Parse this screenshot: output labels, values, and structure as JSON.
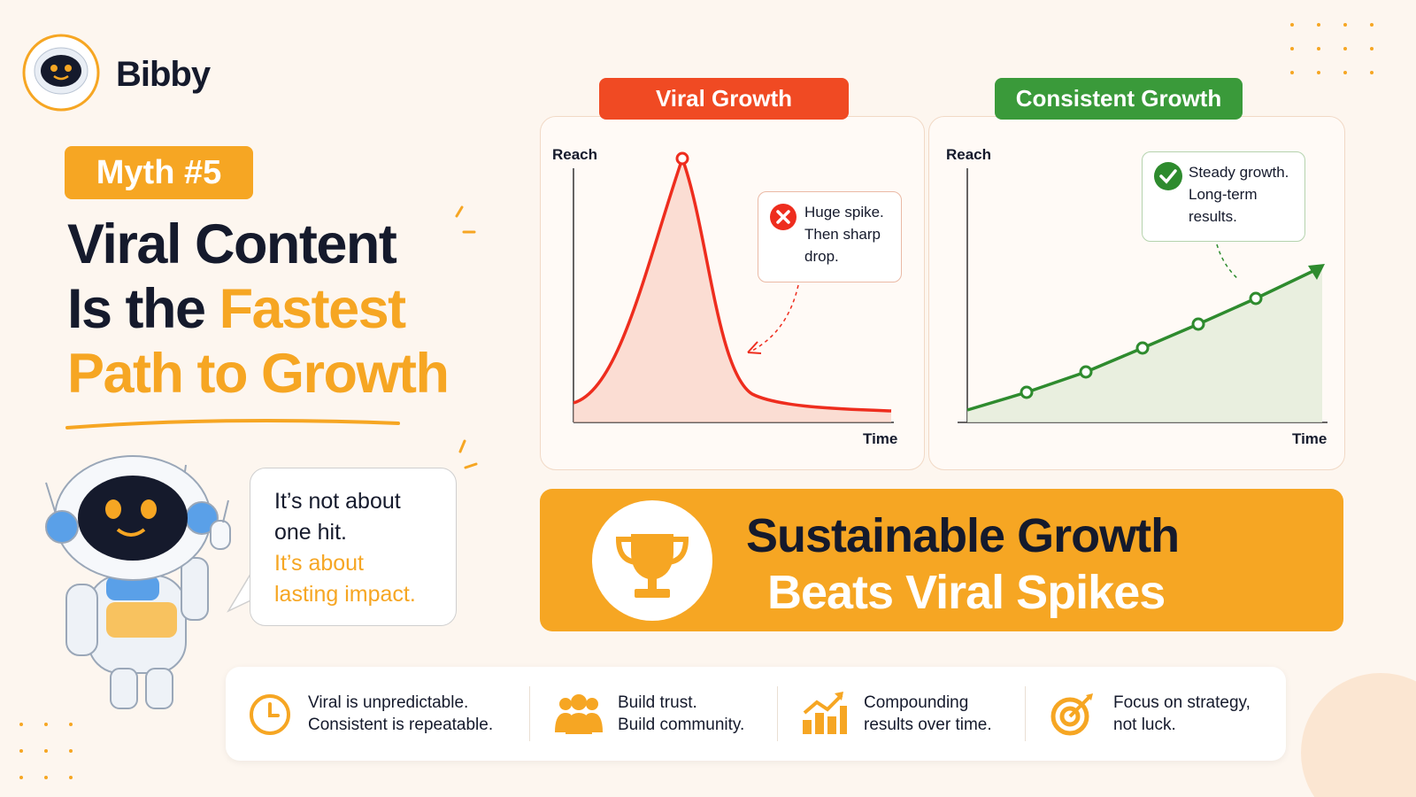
{
  "brand": "Bibby",
  "badge": "Myth #5",
  "headline": {
    "line1": "Viral Content",
    "line2a": "Is the",
    "line2b": "Fastest",
    "line3": "Path to Growth"
  },
  "speech": {
    "line1": "It’s not about",
    "line2": "one hit.",
    "line3": "It’s about",
    "line4": "lasting impact."
  },
  "panels": [
    {
      "title": "Viral Growth",
      "y_label": "Reach",
      "x_label": "Time",
      "note": [
        "Huge spike.",
        "Then sharp",
        "drop."
      ]
    },
    {
      "title": "Consistent Growth",
      "y_label": "Reach",
      "x_label": "Time",
      "note": [
        "Steady growth.",
        "Long-term",
        "results."
      ]
    }
  ],
  "banner": {
    "line1": "Sustainable Growth",
    "line2": "Beats Viral Spikes"
  },
  "features": [
    [
      "Viral is unpredictable.",
      "Consistent is repeatable."
    ],
    [
      "Build trust.",
      "Build community."
    ],
    [
      "Compounding",
      "results over time."
    ],
    [
      "Focus on strategy,",
      "not luck."
    ]
  ]
}
